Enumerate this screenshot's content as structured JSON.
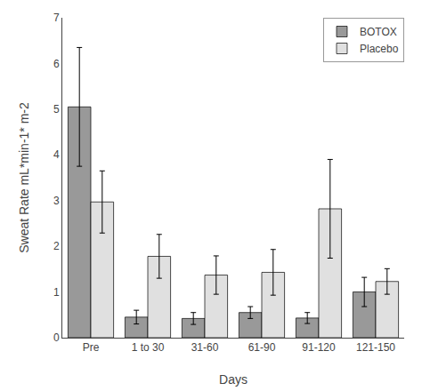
{
  "chart_data": {
    "type": "bar",
    "categories": [
      "Pre",
      "1 to 30",
      "31-60",
      "61-90",
      "91-120",
      "121-150"
    ],
    "series": [
      {
        "name": "BOTOX",
        "color": "#999999",
        "values": [
          5.05,
          0.45,
          0.42,
          0.55,
          0.43,
          1.0
        ],
        "errors": [
          1.3,
          0.15,
          0.13,
          0.13,
          0.12,
          0.32
        ]
      },
      {
        "name": "Placebo",
        "color": "#e0e0e0",
        "values": [
          2.97,
          1.78,
          1.37,
          1.43,
          2.82,
          1.23
        ],
        "errors": [
          0.68,
          0.48,
          0.42,
          0.5,
          1.08,
          0.28
        ]
      }
    ],
    "xlabel": "Days",
    "ylabel": "Sweat Rate mL*min-1* m-2",
    "ylim": [
      0,
      7
    ],
    "yticks": [
      0,
      1,
      2,
      3,
      4,
      5,
      6,
      7
    ],
    "legend": "upper right",
    "grid": false
  }
}
